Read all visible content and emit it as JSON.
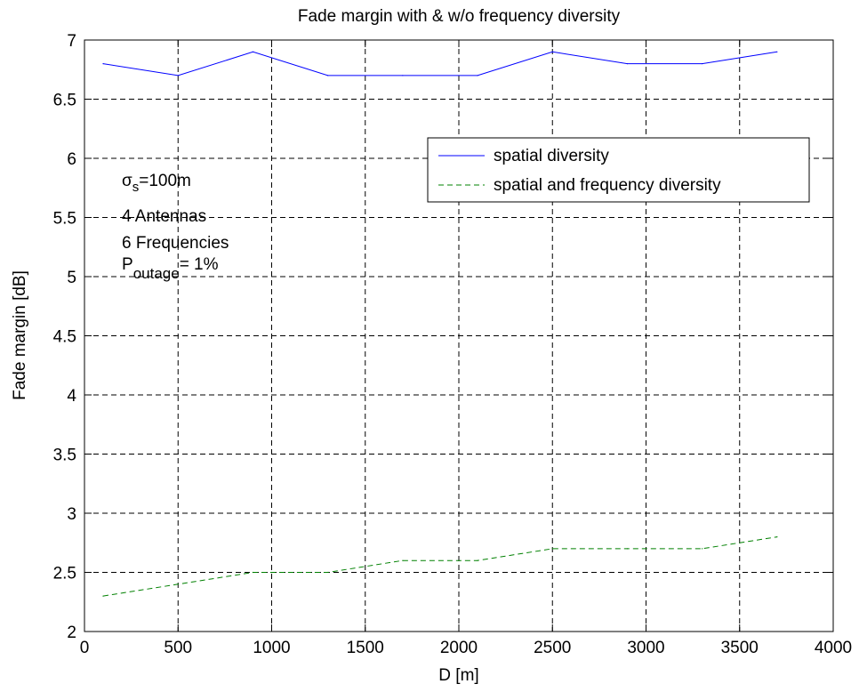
{
  "chart_data": {
    "type": "line",
    "title": "Fade margin with & w/o frequency diversity",
    "xlabel": "D [m]",
    "ylabel": "Fade margin [dB]",
    "xlim": [
      0,
      4000
    ],
    "ylim": [
      2,
      7
    ],
    "xticks": [
      0,
      500,
      1000,
      1500,
      2000,
      2500,
      3000,
      3500,
      4000
    ],
    "yticks": [
      2,
      2.5,
      3,
      3.5,
      4,
      4.5,
      5,
      5.5,
      6,
      6.5,
      7
    ],
    "xtick_labels": [
      "0",
      "500",
      "1000",
      "1500",
      "2000",
      "2500",
      "3000",
      "3500",
      "4000"
    ],
    "ytick_labels": [
      "2",
      "2.5",
      "3",
      "3.5",
      "4",
      "4.5",
      "5",
      "5.5",
      "6",
      "6.5",
      "7"
    ],
    "grid": true,
    "legend_position": "top-right",
    "x": [
      100,
      500,
      900,
      1300,
      1700,
      2100,
      2500,
      2900,
      3300,
      3700
    ],
    "series": [
      {
        "name": "spatial diversity",
        "color": "#0000ff",
        "dash": "solid",
        "values": [
          6.8,
          6.7,
          6.9,
          6.7,
          6.7,
          6.7,
          6.9,
          6.8,
          6.8,
          6.9
        ]
      },
      {
        "name": "spatial and frequency diversity",
        "color": "#008000",
        "dash": "dashed",
        "values": [
          2.3,
          2.4,
          2.5,
          2.5,
          2.6,
          2.6,
          2.7,
          2.7,
          2.7,
          2.8
        ]
      }
    ],
    "annotations": {
      "sigma_symbol": "σ",
      "sigma_sub": "s",
      "sigma_rest": "=100m",
      "antennas": "4 Antennas",
      "frequencies": "6 Frequencies",
      "p_main": "P",
      "p_sub": "outage",
      "p_rest": "= 1%"
    }
  }
}
